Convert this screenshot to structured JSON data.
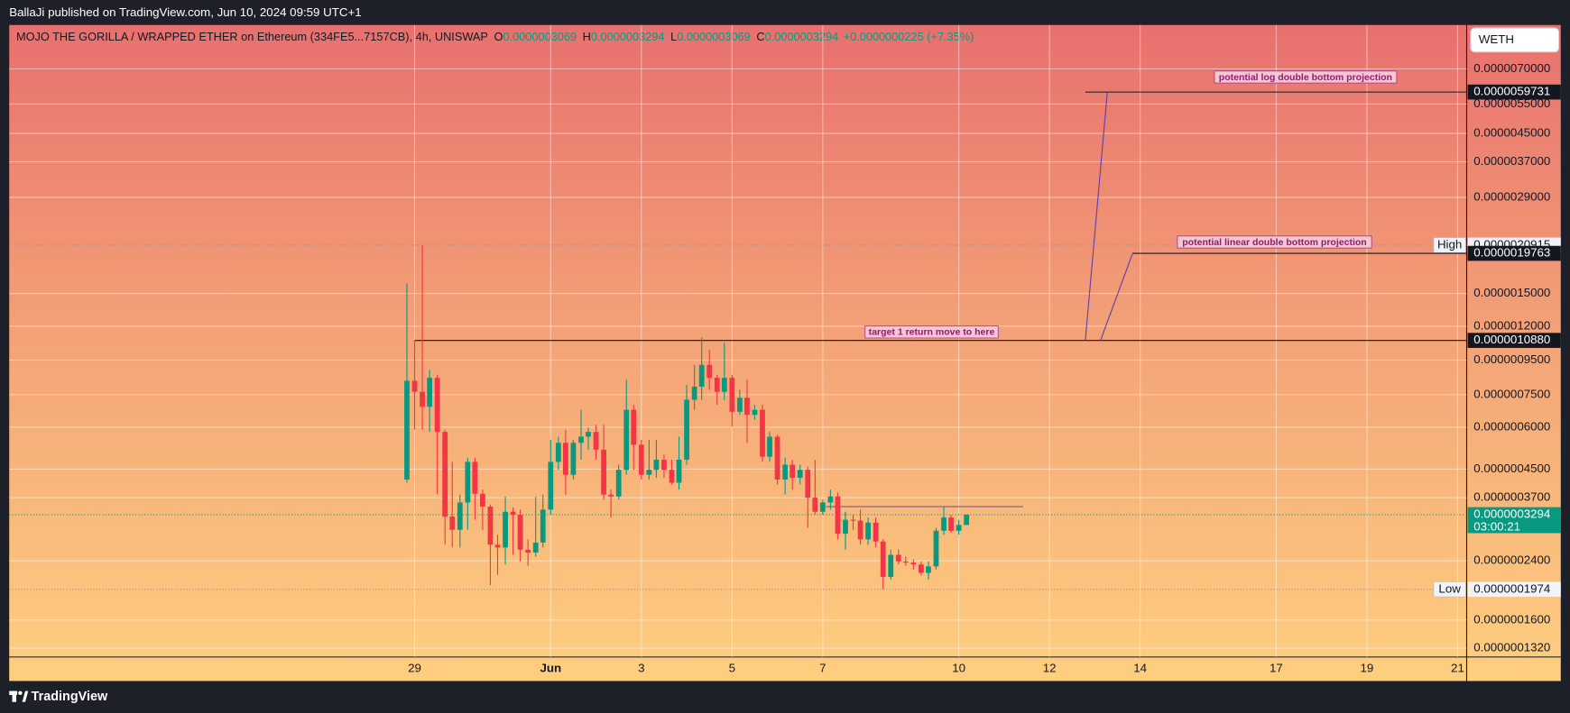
{
  "chart_data": {
    "type": "candlestick",
    "header": "BallaJi published on TradingView.com, Jun 10, 2024 09:59 UTC+1",
    "title": "MOJO THE GORILLA / WRAPPED ETHER on Ethereum (334FE5...7157CB), 4h, UNISWAP",
    "ohlc_labels": [
      {
        "key": "O",
        "label": "0.0000003069"
      },
      {
        "key": "H",
        "label": "0.0000003294"
      },
      {
        "key": "L",
        "label": "0.0000003069"
      },
      {
        "key": "C",
        "label": "0.0000003294"
      }
    ],
    "change_label": "+0.0000000225 (+7.35%)",
    "symbol_button": "WETH",
    "footer": "TradingView",
    "log_scale": true,
    "grid": true,
    "up_color": "#089981",
    "down_color": "#f23645",
    "xlim": [
      -8.94,
      23.2
    ],
    "xticks": [
      {
        "value": 0,
        "label": "29"
      },
      {
        "value": 3,
        "label": "Jun"
      },
      {
        "value": 5,
        "label": "3"
      },
      {
        "value": 7,
        "label": "5"
      },
      {
        "value": 9,
        "label": "7"
      },
      {
        "value": 12,
        "label": "10"
      },
      {
        "value": 14,
        "label": "12"
      },
      {
        "value": 16,
        "label": "14"
      },
      {
        "value": 19,
        "label": "17"
      },
      {
        "value": 21,
        "label": "19"
      },
      {
        "value": 23,
        "label": "21"
      }
    ],
    "ylim": [
      1.241e-07,
      9.46e-06
    ],
    "yticks": [
      {
        "value": 7e-06,
        "label": "0.0000070000"
      },
      {
        "value": 5.5e-06,
        "label": "0.0000055000"
      },
      {
        "value": 4.5e-06,
        "label": "0.0000045000"
      },
      {
        "value": 3.7e-06,
        "label": "0.0000037000"
      },
      {
        "value": 2.9e-06,
        "label": "0.0000029000"
      },
      {
        "value": 1.5e-06,
        "label": "0.0000015000"
      },
      {
        "value": 1.2e-06,
        "label": "0.0000012000"
      },
      {
        "value": 9.5e-07,
        "label": "0.0000009500"
      },
      {
        "value": 7.5e-07,
        "label": "0.0000007500"
      },
      {
        "value": 6e-07,
        "label": "0.0000006000"
      },
      {
        "value": 4.5e-07,
        "label": "0.0000004500"
      },
      {
        "value": 3.7e-07,
        "label": "0.0000003700"
      },
      {
        "value": 2.4e-07,
        "label": "0.0000002400"
      },
      {
        "value": 1.6e-07,
        "label": "0.0000001600"
      },
      {
        "value": 1.32e-07,
        "label": "0.0000001320"
      }
    ],
    "x": [
      -0.17,
      0,
      0.17,
      0.33,
      0.5,
      0.67,
      0.83,
      1,
      1.17,
      1.33,
      1.5,
      1.67,
      1.83,
      2,
      2.17,
      2.33,
      2.5,
      2.67,
      2.83,
      3,
      3.17,
      3.33,
      3.5,
      3.67,
      3.83,
      4,
      4.17,
      4.33,
      4.5,
      4.67,
      4.83,
      5,
      5.17,
      5.33,
      5.5,
      5.67,
      5.83,
      6,
      6.17,
      6.33,
      6.5,
      6.67,
      6.83,
      7,
      7.17,
      7.33,
      7.5,
      7.67,
      7.83,
      8,
      8.17,
      8.33,
      8.5,
      8.67,
      8.83,
      9,
      9.17,
      9.33,
      9.5,
      9.67,
      9.83,
      10,
      10.17,
      10.33,
      10.5,
      10.67,
      10.83,
      11,
      11.17,
      11.33,
      11.5,
      11.67,
      11.83,
      12,
      12.17
    ],
    "open": [
      4.19e-07,
      8.25e-07,
      7.65e-07,
      6.9e-07,
      8.42e-07,
      5.81e-07,
      3.25e-07,
      2.97e-07,
      3.58e-07,
      4.73e-07,
      3.8e-07,
      3.48e-07,
      2.68e-07,
      2.63e-07,
      3.36e-07,
      3.29e-07,
      2.59e-07,
      2.54e-07,
      2.72e-07,
      3.41e-07,
      4.73e-07,
      5.39e-07,
      4.33e-07,
      5.39e-07,
      5.62e-07,
      5.81e-07,
      5.14e-07,
      3.78e-07,
      3.73e-07,
      4.48e-07,
      6.76e-07,
      5.32e-07,
      4.33e-07,
      4.48e-07,
      4.8e-07,
      4.48e-07,
      4.1e-07,
      4.8e-07,
      7.24e-07,
      7.92e-07,
      9.2e-07,
      8.42e-07,
      7.65e-07,
      8.42e-07,
      6.67e-07,
      7.34e-07,
      6.53e-07,
      6.76e-07,
      4.9e-07,
      5.62e-07,
      4.19e-07,
      4.64e-07,
      4.24e-07,
      4.48e-07,
      3.7e-07,
      3.36e-07,
      3.58e-07,
      3.73e-07,
      2.89e-07,
      3.18e-07,
      3.16e-07,
      2.78e-07,
      3.12e-07,
      2.74e-07,
      2.15e-07,
      2.5e-07,
      2.39e-07,
      2.37e-07,
      2.34e-07,
      2.21e-07,
      2.31e-07,
      2.95e-07,
      3.23e-07,
      2.95e-07,
      3.069e-07
    ],
    "high": [
      1.61e-06,
      1.09e-06,
      2.0915e-06,
      8.89e-07,
      8.59e-07,
      5.9e-07,
      4.73e-07,
      3.78e-07,
      4.87e-07,
      4.87e-07,
      3.91e-07,
      3.53e-07,
      2.87e-07,
      3.73e-07,
      3.46e-07,
      3.41e-07,
      2.78e-07,
      3.73e-07,
      3.78e-07,
      5.5e-07,
      5.62e-07,
      5.9e-07,
      5.5e-07,
      6.76e-07,
      5.98e-07,
      6.1e-07,
      6.1e-07,
      3.91e-07,
      4.64e-07,
      8.31e-07,
      7e-07,
      5.5e-07,
      5.5e-07,
      5.5e-07,
      4.97e-07,
      4.8e-07,
      5.62e-07,
      8.02e-07,
      9.2e-07,
      1.11e-06,
      1.02e-06,
      8.59e-07,
      1.07e-06,
      8.59e-07,
      7.75e-07,
      8.31e-07,
      7e-07,
      7e-07,
      5.81e-07,
      5.7e-07,
      4.87e-07,
      4.8e-07,
      4.64e-07,
      4.58e-07,
      4.8e-07,
      3.65e-07,
      3.91e-07,
      3.83e-07,
      3.36e-07,
      3.29e-07,
      3.41e-07,
      3.23e-07,
      3.23e-07,
      2.78e-07,
      2.59e-07,
      2.59e-07,
      2.47e-07,
      2.42e-07,
      2.39e-07,
      2.39e-07,
      3.01e-07,
      3.48e-07,
      3.29e-07,
      3.18e-07,
      3.294e-07
    ],
    "low": [
      4.1e-07,
      5.9e-07,
      5.9e-07,
      5.81e-07,
      3.78e-07,
      2.68e-07,
      2.63e-07,
      2.63e-07,
      2.97e-07,
      3.18e-07,
      2.97e-07,
      2.03e-07,
      2.18e-07,
      2.34e-07,
      2.5e-07,
      2.39e-07,
      2.32e-07,
      2.47e-07,
      2.63e-07,
      3.29e-07,
      4.48e-07,
      3.78e-07,
      4.19e-07,
      4.8e-07,
      5.14e-07,
      4.8e-07,
      3.65e-07,
      3.23e-07,
      3.65e-07,
      4.33e-07,
      4.48e-07,
      4.19e-07,
      4.19e-07,
      4.24e-07,
      4.24e-07,
      4.05e-07,
      3.91e-07,
      4.64e-07,
      6.76e-07,
      7.24e-07,
      7.75e-07,
      7e-07,
      7.24e-07,
      6.02e-07,
      6.53e-07,
      5.39e-07,
      6.31e-07,
      4.73e-07,
      4.73e-07,
      4.05e-07,
      3.78e-07,
      3.91e-07,
      4.05e-07,
      3.01e-07,
      3.29e-07,
      3.29e-07,
      3.41e-07,
      2.78e-07,
      2.59e-07,
      2.97e-07,
      2.68e-07,
      2.68e-07,
      2.63e-07,
      1.974e-07,
      2.11e-07,
      2.34e-07,
      2.32e-07,
      2.26e-07,
      2.17e-07,
      2.11e-07,
      2.26e-07,
      2.87e-07,
      2.91e-07,
      2.87e-07,
      3.069e-07
    ],
    "close": [
      8.25e-07,
      7.65e-07,
      6.9e-07,
      8.42e-07,
      5.81e-07,
      3.25e-07,
      2.97e-07,
      3.58e-07,
      4.73e-07,
      3.8e-07,
      3.48e-07,
      2.68e-07,
      2.63e-07,
      3.36e-07,
      3.29e-07,
      2.59e-07,
      2.54e-07,
      2.72e-07,
      3.41e-07,
      4.73e-07,
      5.39e-07,
      4.33e-07,
      5.39e-07,
      5.62e-07,
      5.81e-07,
      5.14e-07,
      3.78e-07,
      3.73e-07,
      4.48e-07,
      6.76e-07,
      5.32e-07,
      4.33e-07,
      4.48e-07,
      4.8e-07,
      4.48e-07,
      4.1e-07,
      4.8e-07,
      7.24e-07,
      7.92e-07,
      9.2e-07,
      8.42e-07,
      7.65e-07,
      8.42e-07,
      6.67e-07,
      7.34e-07,
      6.53e-07,
      6.76e-07,
      4.9e-07,
      5.62e-07,
      4.19e-07,
      4.64e-07,
      4.24e-07,
      4.48e-07,
      3.7e-07,
      3.36e-07,
      3.58e-07,
      3.73e-07,
      2.89e-07,
      3.18e-07,
      3.16e-07,
      2.78e-07,
      3.12e-07,
      2.74e-07,
      2.15e-07,
      2.5e-07,
      2.39e-07,
      2.37e-07,
      2.34e-07,
      2.21e-07,
      2.31e-07,
      2.95e-07,
      3.23e-07,
      2.95e-07,
      3.069e-07,
      3.294e-07
    ],
    "price_labels": [
      {
        "value": 5.9731e-06,
        "label": "0.0000059731"
      },
      {
        "value": 2.0915e-06,
        "label": "0.0000020915",
        "tag": "High"
      },
      {
        "value": 1.9763e-06,
        "label": "0.0000019763"
      },
      {
        "value": 1.088e-06,
        "label": "0.0000010880"
      },
      {
        "value": 3.294e-07,
        "label": "0.0000003294",
        "countdown": "03:00:21"
      },
      {
        "value": 1.974e-07,
        "label": "0.0000001974",
        "tag": "Low"
      }
    ],
    "level_line": 3.48e-07,
    "annotations": [
      "potential log double bottom projection",
      "potential linear double bottom projection",
      "target 1 return move to here"
    ]
  }
}
